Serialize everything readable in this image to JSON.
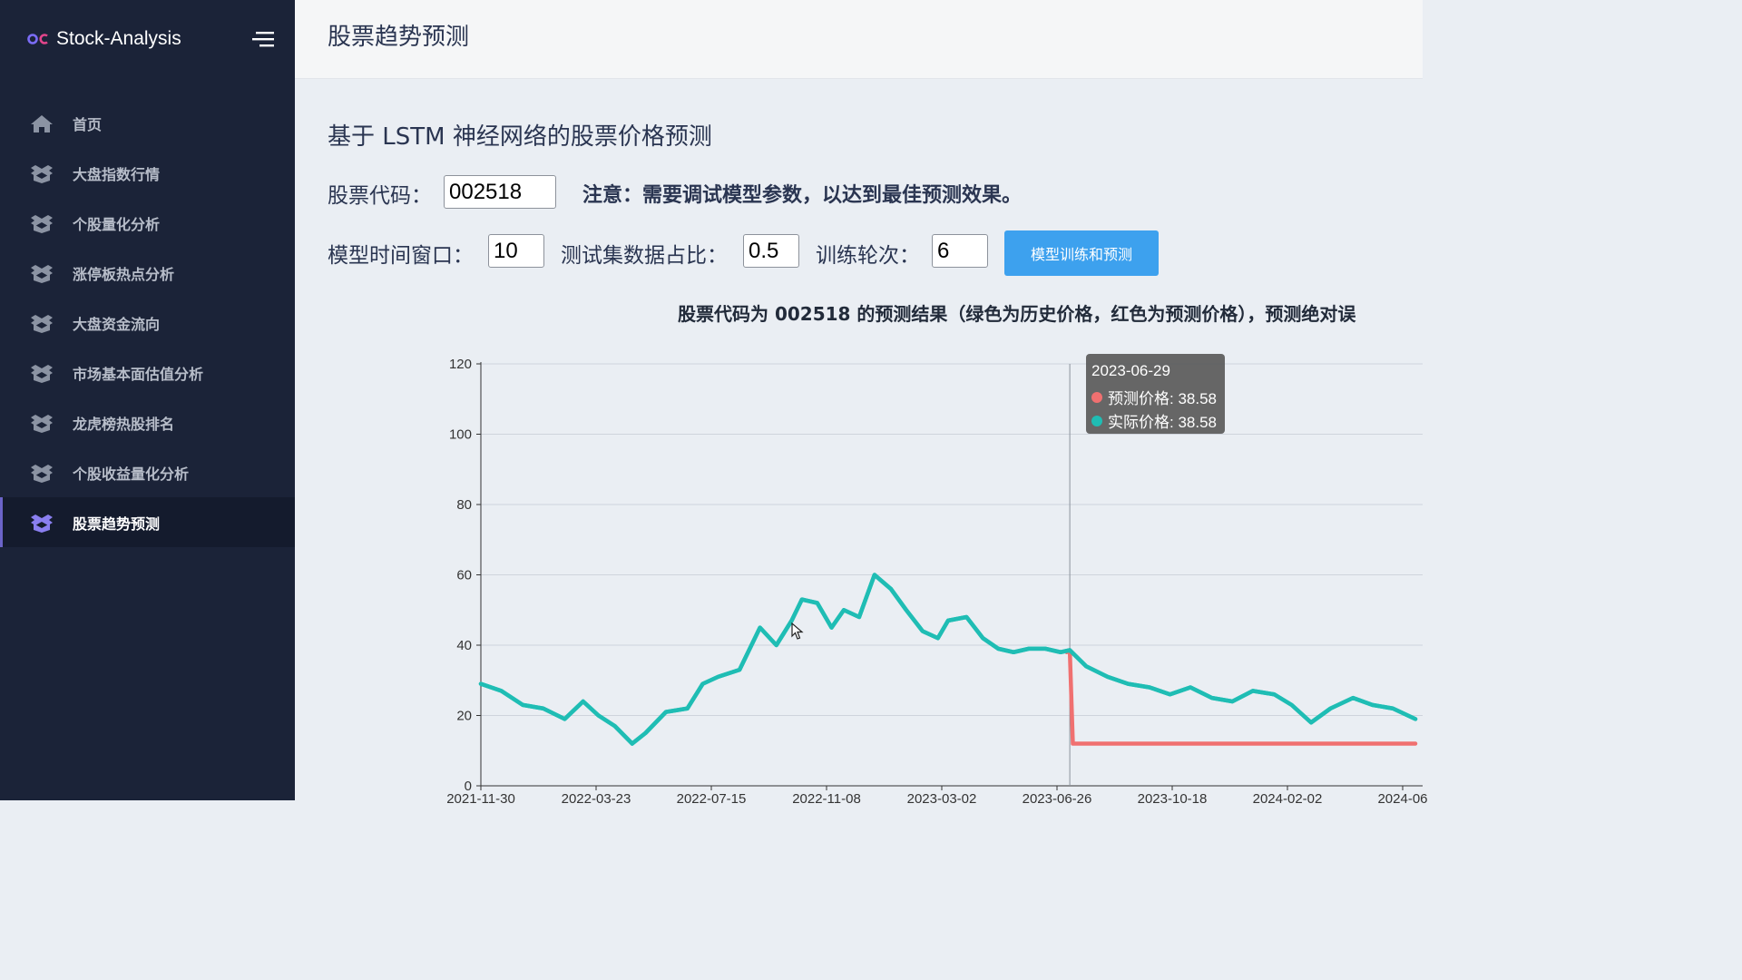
{
  "sidebar": {
    "brand": "Stock-Analysis",
    "items": [
      {
        "label": "首页",
        "icon": "home-icon"
      },
      {
        "label": "大盘指数行情",
        "icon": "box-icon"
      },
      {
        "label": "个股量化分析",
        "icon": "box-icon"
      },
      {
        "label": "涨停板热点分析",
        "icon": "box-icon"
      },
      {
        "label": "大盘资金流向",
        "icon": "box-icon"
      },
      {
        "label": "市场基本面估值分析",
        "icon": "box-icon"
      },
      {
        "label": "龙虎榜热股排名",
        "icon": "box-icon"
      },
      {
        "label": "个股收益量化分析",
        "icon": "box-icon"
      },
      {
        "label": "股票趋势预测",
        "icon": "box-icon",
        "active": true
      }
    ]
  },
  "header": {
    "title": "股票趋势预测"
  },
  "main": {
    "section_title": "基于 LSTM 神经网络的股票价格预测",
    "stock_code_label": "股票代码：",
    "stock_code_value": "002518",
    "notice": "注意：需要调试模型参数，以达到最佳预测效果。",
    "window_label": "模型时间窗口：",
    "window_value": "10",
    "test_ratio_label": "测试集数据占比：",
    "test_ratio_value": "0.5",
    "epochs_label": "训练轮次：",
    "epochs_value": "6",
    "train_button": "模型训练和预测",
    "chart_heading": "股票代码为 002518 的预测结果（绿色为历史价格，红色为预测价格），预测绝对误"
  },
  "tooltip": {
    "date": "2023-06-29",
    "predicted_label": "预测价格: 38.58",
    "actual_label": "实际价格: 38.58"
  },
  "colors": {
    "sidebar_bg": "#1b2338",
    "actual_series": "#1fbdb4",
    "predicted_series": "#f07070",
    "accent": "#3da1ee"
  },
  "chart_data": {
    "type": "line",
    "yticks": [
      0,
      20,
      40,
      60,
      80,
      100,
      120
    ],
    "ylim": [
      0,
      120
    ],
    "xticks": [
      "2021-11-30",
      "2022-03-23",
      "2022-07-15",
      "2022-11-08",
      "2023-03-02",
      "2023-06-26",
      "2023-10-18",
      "2024-02-02",
      "2024-06"
    ],
    "series": [
      {
        "name": "实际价格",
        "color": "#1fbdb4",
        "x": [
          "2021-11-30",
          "2021-12-20",
          "2022-01-10",
          "2022-01-30",
          "2022-02-20",
          "2022-03-10",
          "2022-03-25",
          "2022-04-10",
          "2022-04-27",
          "2022-05-10",
          "2022-05-30",
          "2022-06-20",
          "2022-07-05",
          "2022-07-20",
          "2022-08-10",
          "2022-08-30",
          "2022-09-15",
          "2022-09-30",
          "2022-10-10",
          "2022-10-25",
          "2022-11-08",
          "2022-11-20",
          "2022-12-05",
          "2022-12-20",
          "2023-01-05",
          "2023-01-20",
          "2023-02-05",
          "2023-02-20",
          "2023-03-02",
          "2023-03-20",
          "2023-04-05",
          "2023-04-20",
          "2023-05-05",
          "2023-05-20",
          "2023-06-05",
          "2023-06-20",
          "2023-06-29",
          "2023-07-15",
          "2023-08-05",
          "2023-08-25",
          "2023-09-15",
          "2023-10-05",
          "2023-10-25",
          "2023-11-15",
          "2023-12-05",
          "2023-12-25",
          "2024-01-15",
          "2024-02-01",
          "2024-02-20",
          "2024-03-10",
          "2024-04-01",
          "2024-04-20",
          "2024-05-10",
          "2024-06-01"
        ],
        "values": [
          29,
          27,
          23,
          22,
          19,
          24,
          20,
          17,
          12,
          15,
          21,
          22,
          29,
          31,
          33,
          45,
          40,
          47,
          53,
          52,
          45,
          50,
          48,
          60,
          56,
          50,
          44,
          42,
          47,
          48,
          42,
          39,
          38,
          39,
          39,
          38,
          38.58,
          34,
          31,
          29,
          28,
          26,
          28,
          25,
          24,
          27,
          26,
          23,
          18,
          22,
          25,
          23,
          22,
          19
        ]
      },
      {
        "name": "预测价格",
        "color": "#f07070",
        "x": [
          "2023-06-26",
          "2023-06-29",
          "2023-07-02",
          "2023-10-18",
          "2024-02-02",
          "2024-06-01"
        ],
        "values": [
          38,
          38.58,
          12,
          12,
          12,
          12
        ]
      }
    ]
  }
}
